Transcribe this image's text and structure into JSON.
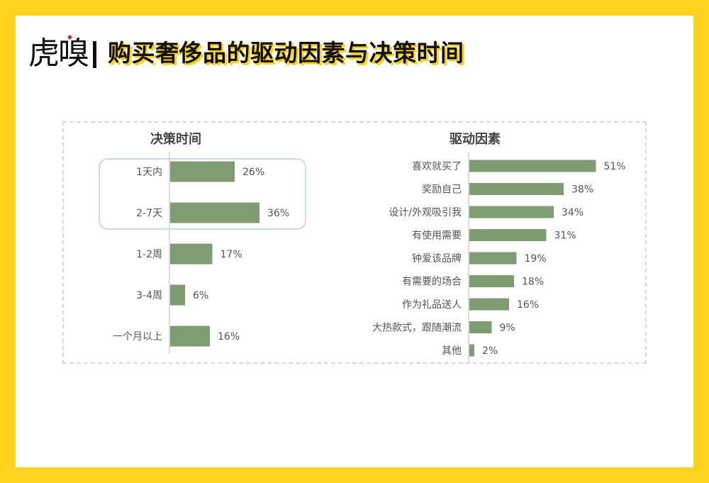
{
  "header": {
    "logo_text": "虎嗅",
    "title": "购买奢侈品的驱动因素与决策时间"
  },
  "colors": {
    "page_background": "#FFD21F",
    "bar": "#7F9C72",
    "highlight_border": "#C9DCE3"
  },
  "chart_data": [
    {
      "type": "bar",
      "orientation": "horizontal",
      "title": "决策时间",
      "categories": [
        "1天内",
        "2-7天",
        "1-2周",
        "3-4周",
        "一个月以上"
      ],
      "values": [
        26,
        36,
        17,
        6,
        16
      ],
      "value_labels": [
        "26%",
        "36%",
        "17%",
        "6%",
        "16%"
      ],
      "unit": "%",
      "highlighted_categories": [
        "1天内",
        "2-7天"
      ],
      "xlim": [
        0,
        40
      ],
      "grid": false
    },
    {
      "type": "bar",
      "orientation": "horizontal",
      "title": "驱动因素",
      "categories": [
        "喜欢就买了",
        "奖励自己",
        "设计/外观吸引我",
        "有使用需要",
        "钟爱该品牌",
        "有需要的场合",
        "作为礼品送人",
        "大热款式，跟随潮流",
        "其他"
      ],
      "values": [
        51,
        38,
        34,
        31,
        19,
        18,
        16,
        9,
        2
      ],
      "value_labels": [
        "51%",
        "38%",
        "34%",
        "31%",
        "19%",
        "18%",
        "16%",
        "9%",
        "2%"
      ],
      "unit": "%",
      "xlim": [
        0,
        60
      ],
      "grid": false
    }
  ]
}
